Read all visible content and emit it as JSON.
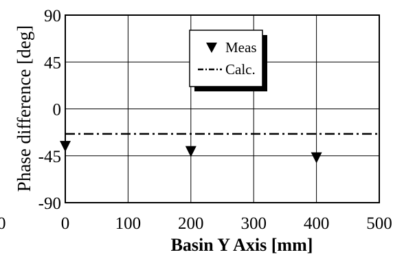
{
  "chart_data": {
    "type": "scatter",
    "title": "",
    "xlabel": "Basin Y Axis [mm]",
    "ylabel": "Phase difference [deg]",
    "xlim": [
      0,
      500
    ],
    "ylim": [
      -90,
      90
    ],
    "x_ticks": [
      "0",
      "100",
      "200",
      "300",
      "400",
      "500"
    ],
    "y_ticks": [
      "90",
      "45",
      "0",
      "-45",
      "-90"
    ],
    "x_tick_values": [
      0,
      100,
      200,
      300,
      400,
      500
    ],
    "y_tick_values": [
      90,
      45,
      0,
      -45,
      -90
    ],
    "stray_tick_label": "0",
    "grid": true,
    "legend_position": "top-center",
    "series": [
      {
        "name": "Meas",
        "kind": "marker",
        "marker": "triangle-down",
        "color": "#000000",
        "x": [
          0,
          200,
          400
        ],
        "y": [
          -36,
          -41,
          -47
        ]
      },
      {
        "name": "Calc.",
        "kind": "line",
        "line_style": "dash-dot",
        "color": "#000000",
        "x": [
          0,
          500
        ],
        "y": [
          -24,
          -24
        ]
      }
    ]
  }
}
